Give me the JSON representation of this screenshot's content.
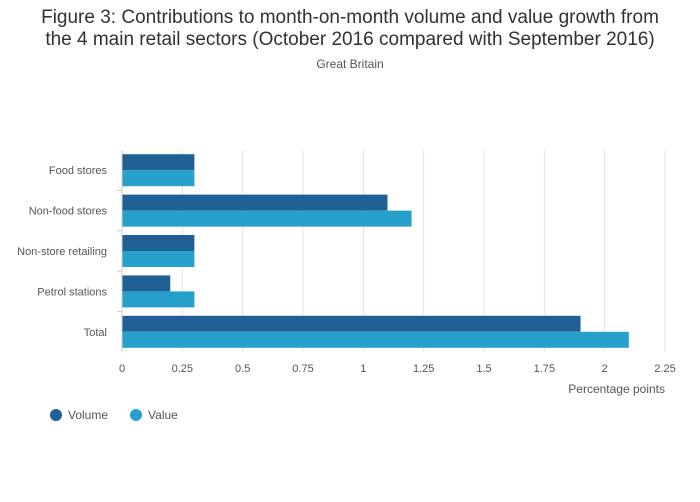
{
  "chart_data": {
    "type": "bar",
    "orientation": "horizontal",
    "title": "Figure 3: Contributions to month-on-month volume and value growth from the 4 main retail sectors (October 2016 compared with September 2016)",
    "subtitle": "Great Britain",
    "categories": [
      "Food stores",
      "Non-food stores",
      "Non-store retailing",
      "Petrol stations",
      "Total"
    ],
    "series": [
      {
        "name": "Volume",
        "color": "#206095",
        "values": [
          0.3,
          1.1,
          0.3,
          0.2,
          1.9
        ]
      },
      {
        "name": "Value",
        "color": "#27a0cc",
        "values": [
          0.3,
          1.2,
          0.3,
          0.3,
          2.1
        ]
      }
    ],
    "xlabel": "Percentage points",
    "ylabel": "",
    "xlim": [
      0,
      2.25
    ],
    "xticks": [
      "0",
      "0.25",
      "0.5",
      "0.75",
      "1",
      "1.25",
      "1.5",
      "1.75",
      "2",
      "2.25"
    ],
    "grid": true,
    "legend_position": "bottom-left"
  }
}
